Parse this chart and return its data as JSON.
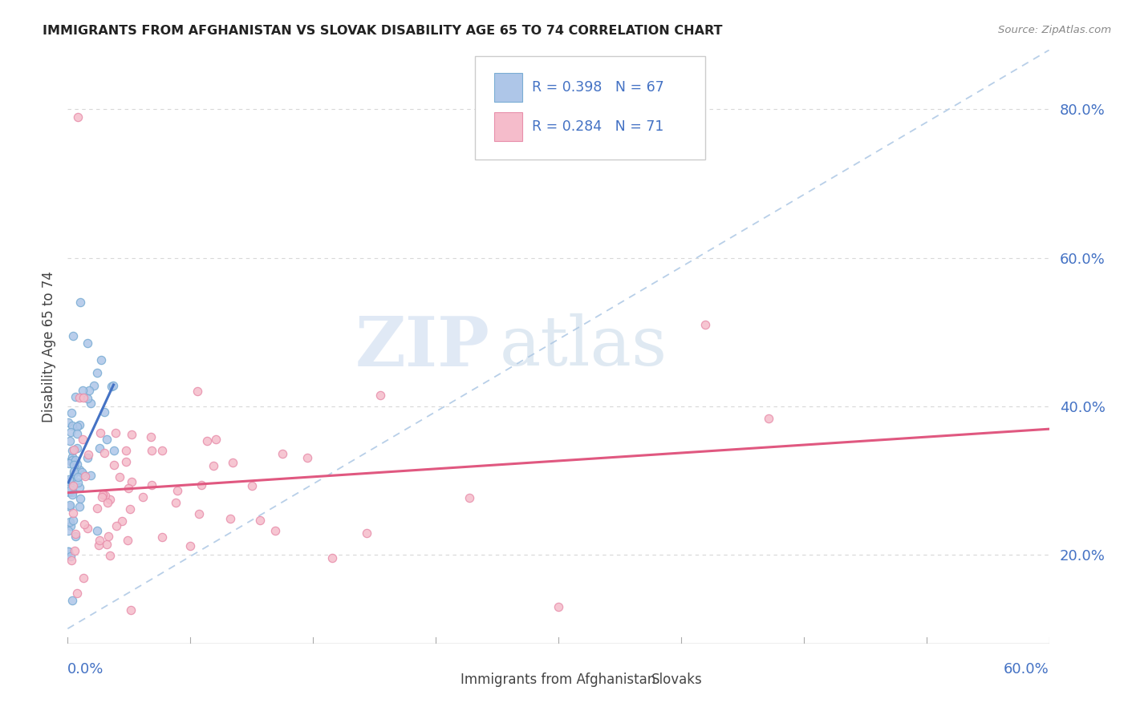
{
  "title": "IMMIGRANTS FROM AFGHANISTAN VS SLOVAK DISABILITY AGE 65 TO 74 CORRELATION CHART",
  "source": "Source: ZipAtlas.com",
  "ylabel": "Disability Age 65 to 74",
  "right_ytick_vals": [
    0.2,
    0.4,
    0.6,
    0.8
  ],
  "watermark_zip": "ZIP",
  "watermark_atlas": "atlas",
  "legend1_r": "R = 0.398",
  "legend1_n": "N = 67",
  "legend2_r": "R = 0.284",
  "legend2_n": "N = 71",
  "legend_bottom1": "Immigrants from Afghanistan",
  "legend_bottom2": "Slovaks",
  "series1_color": "#aec6e8",
  "series1_edge": "#7aadd4",
  "series2_color": "#f5bccb",
  "series2_edge": "#e88fab",
  "trendline1_color": "#4472c4",
  "trendline2_color": "#e05880",
  "diagonal_color": "#b8cfe8",
  "R1": 0.398,
  "N1": 67,
  "R2": 0.284,
  "N2": 71,
  "xmin": 0.0,
  "xmax": 0.6,
  "ymin": 0.08,
  "ymax": 0.88,
  "grid_color": "#d8d8d8",
  "background_color": "#ffffff",
  "seed1": 42,
  "seed2": 77
}
